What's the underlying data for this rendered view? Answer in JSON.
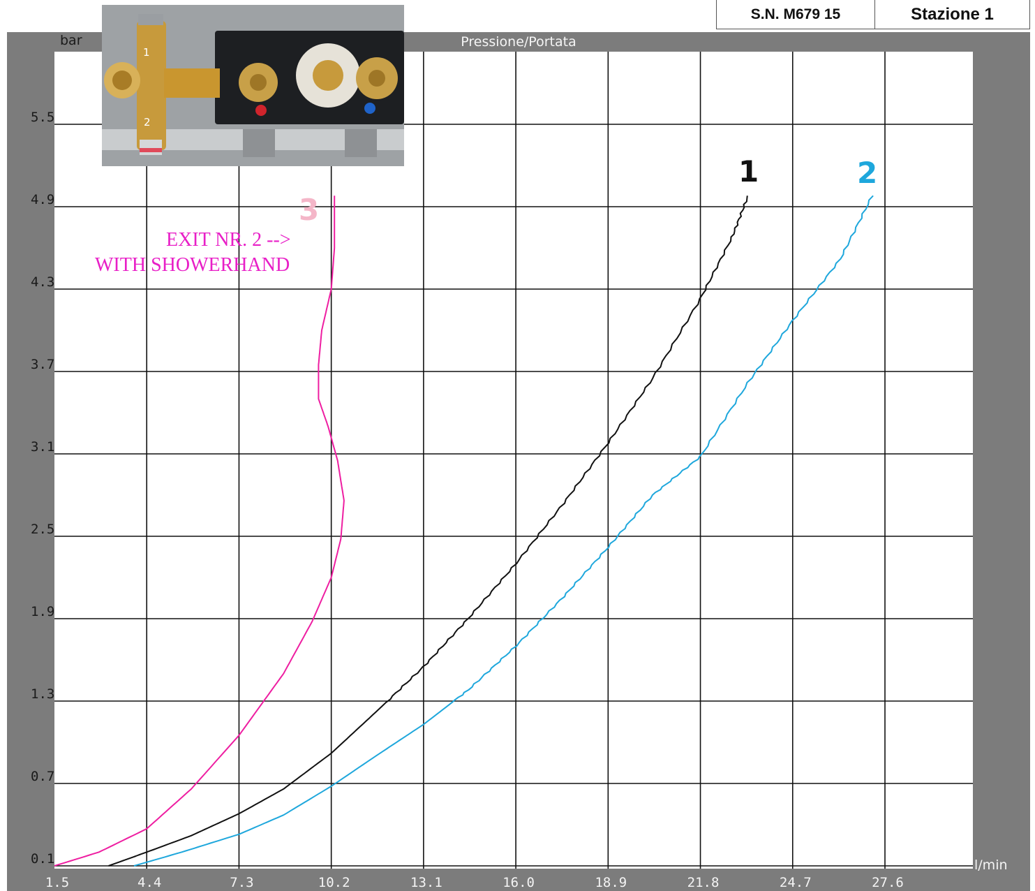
{
  "header": {
    "serial": "S.N. M679 15",
    "station": "Stazione 1"
  },
  "photo": {
    "marker_1": "1",
    "marker_2": "2"
  },
  "annotation": {
    "line1": "EXIT NR. 2     -->",
    "line2": "WITH SHOWERHAND"
  },
  "chart_data": {
    "type": "line",
    "title": "Pressione/Portata",
    "ylabel": "bar",
    "xlabel": "l/min",
    "x_ticks": [
      "1.5",
      "4.4",
      "7.3",
      "10.2",
      "13.1",
      "16.0",
      "18.9",
      "21.8",
      "24.7",
      "27.6"
    ],
    "y_ticks": [
      "0.1",
      "0.7",
      "1.3",
      "1.9",
      "2.5",
      "3.1",
      "3.7",
      "4.3",
      "4.9",
      "5.5"
    ],
    "xlim": [
      1.5,
      27.6
    ],
    "ylim": [
      0.1,
      5.5
    ],
    "grid": true,
    "series": [
      {
        "name": "1",
        "color": "#111111",
        "points": [
          [
            3.2,
            0.1
          ],
          [
            4.4,
            0.2
          ],
          [
            5.8,
            0.32
          ],
          [
            7.3,
            0.48
          ],
          [
            8.7,
            0.66
          ],
          [
            10.2,
            0.92
          ],
          [
            11.6,
            1.22
          ],
          [
            13.1,
            1.55
          ],
          [
            14.5,
            1.9
          ],
          [
            16.0,
            2.3
          ],
          [
            17.5,
            2.74
          ],
          [
            18.9,
            3.18
          ],
          [
            20.3,
            3.65
          ],
          [
            21.8,
            4.23
          ],
          [
            22.8,
            4.68
          ],
          [
            23.3,
            4.98
          ]
        ]
      },
      {
        "name": "2",
        "color": "#1ea7dc",
        "points": [
          [
            4.0,
            0.1
          ],
          [
            5.5,
            0.2
          ],
          [
            7.3,
            0.33
          ],
          [
            8.7,
            0.47
          ],
          [
            10.2,
            0.68
          ],
          [
            11.6,
            0.9
          ],
          [
            13.1,
            1.13
          ],
          [
            14.5,
            1.38
          ],
          [
            16.0,
            1.7
          ],
          [
            17.5,
            2.06
          ],
          [
            18.9,
            2.42
          ],
          [
            20.3,
            2.8
          ],
          [
            21.8,
            3.08
          ],
          [
            23.3,
            3.62
          ],
          [
            24.7,
            4.07
          ],
          [
            26.2,
            4.52
          ],
          [
            27.2,
            4.98
          ]
        ]
      },
      {
        "name": "3",
        "color": "#ee1ea1",
        "points": [
          [
            1.5,
            0.1
          ],
          [
            2.9,
            0.2
          ],
          [
            4.4,
            0.37
          ],
          [
            5.8,
            0.66
          ],
          [
            7.3,
            1.05
          ],
          [
            8.7,
            1.5
          ],
          [
            9.6,
            1.88
          ],
          [
            10.2,
            2.2
          ],
          [
            10.5,
            2.48
          ],
          [
            10.6,
            2.76
          ],
          [
            10.4,
            3.05
          ],
          [
            10.1,
            3.3
          ],
          [
            9.8,
            3.5
          ],
          [
            9.8,
            3.75
          ],
          [
            9.9,
            4.0
          ],
          [
            10.2,
            4.3
          ],
          [
            10.3,
            4.6
          ],
          [
            10.3,
            4.98
          ]
        ]
      }
    ]
  }
}
